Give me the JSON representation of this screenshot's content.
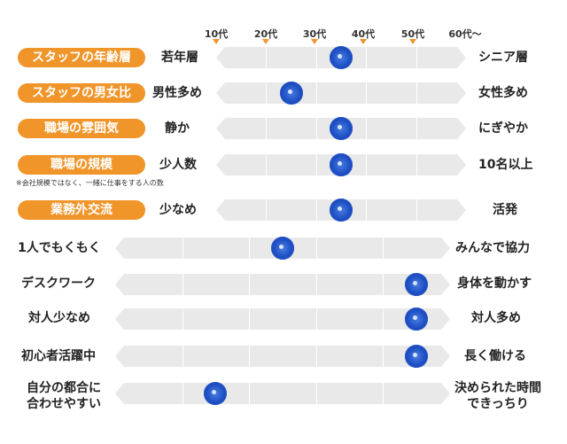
{
  "scale": {
    "labels": [
      "10代",
      "20代",
      "30代",
      "40代",
      "50代",
      "60代〜"
    ]
  },
  "rows": [
    {
      "label": "スタッフの年齢層",
      "left": "若年層",
      "right": "シニア層",
      "value_fraction": 0.5
    },
    {
      "label": "スタッフの男女比",
      "left": "男性多め",
      "right": "女性多め",
      "value_fraction": 0.3
    },
    {
      "label": "職場の雰囲気",
      "left": "静か",
      "right": "にぎやか",
      "value_fraction": 0.5
    },
    {
      "label": "職場の規模",
      "note": "※会社規模ではなく、一緒に仕事をする人の数",
      "left": "少人数",
      "right": "10名以上",
      "value_fraction": 0.5
    },
    {
      "label": "業務外交流",
      "left": "少なめ",
      "right": "活発",
      "value_fraction": 0.5
    },
    {
      "left": "1人でもくもく",
      "right": "みんなで協力",
      "value_fraction": 0.5
    },
    {
      "left": "デスクワーク",
      "right": "身体を動かす",
      "value_fraction": 0.9
    },
    {
      "left": "対人少なめ",
      "right": "対人多め",
      "value_fraction": 0.9
    },
    {
      "left": "初心者活躍中",
      "right": "長く働ける",
      "value_fraction": 0.9
    },
    {
      "left": "自分の都合に\n合わせやすい",
      "right": "決められた時間\nできっちり",
      "value_fraction": 0.3
    }
  ],
  "colors": {
    "accent": "#f0952a",
    "track": "#e9e9e9",
    "dot": "#1d4fc4"
  }
}
